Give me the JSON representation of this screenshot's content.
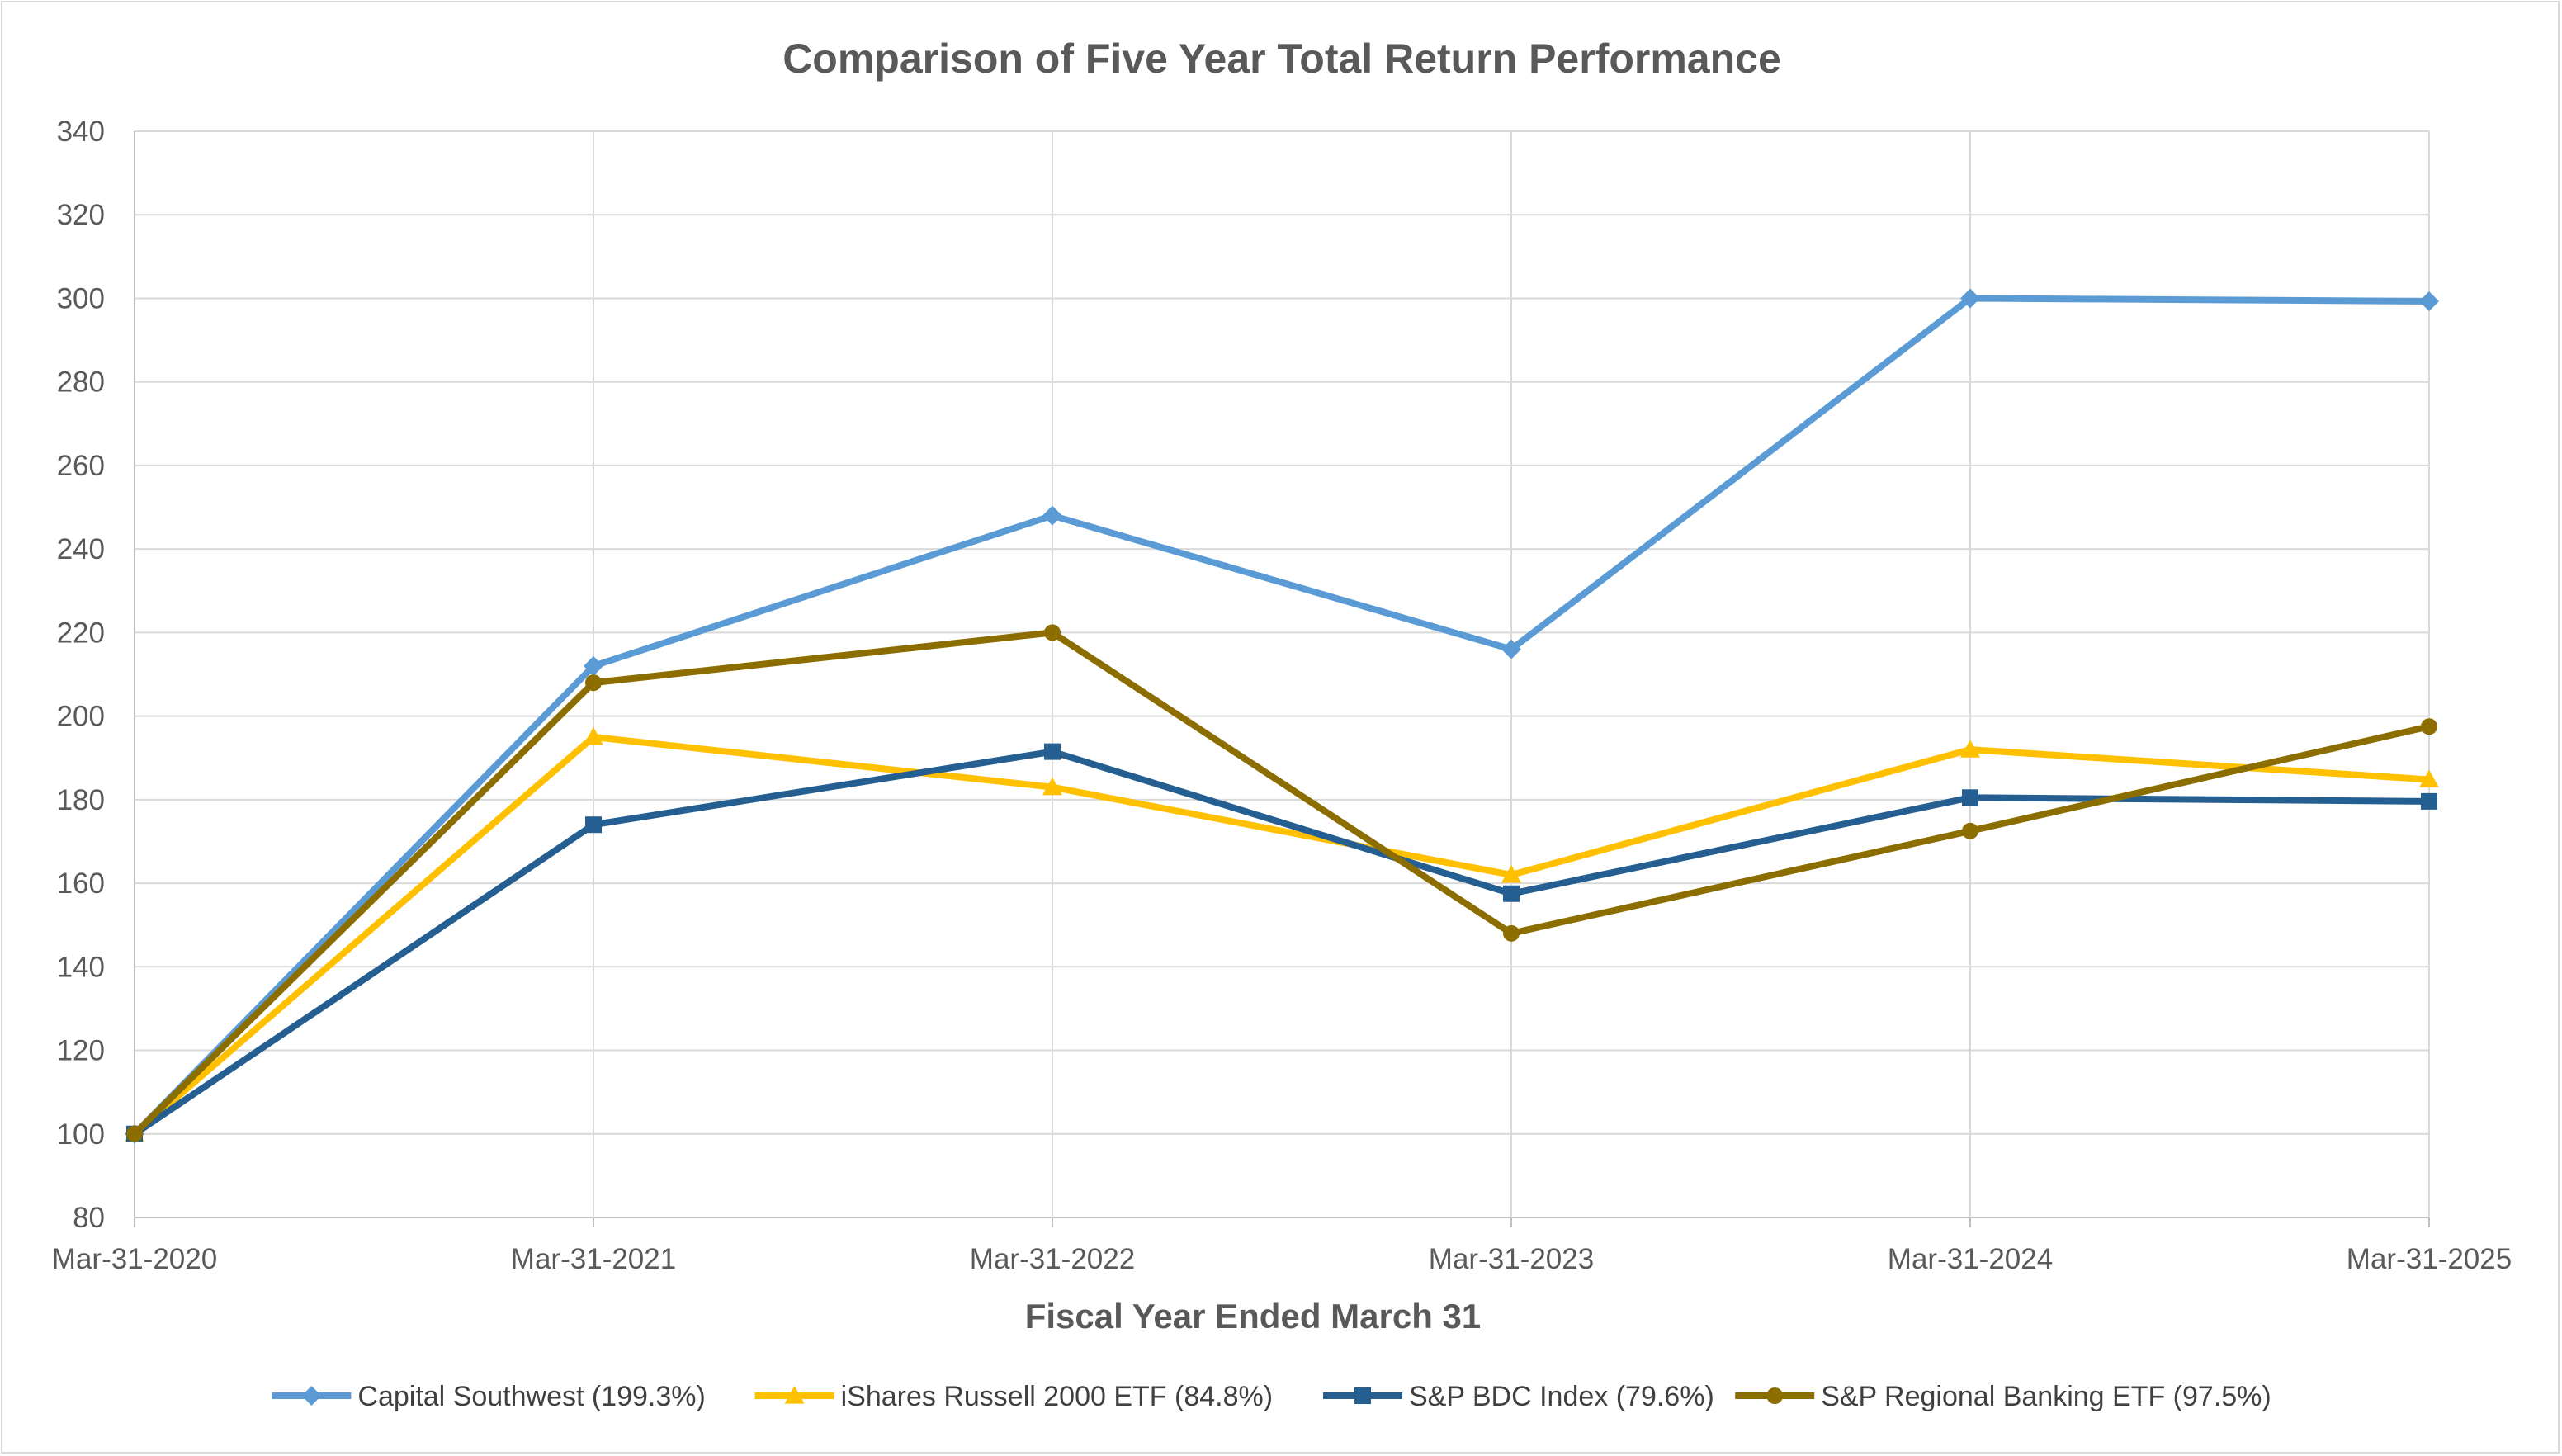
{
  "chart_data": {
    "type": "line",
    "title": "Comparison of Five Year Total Return Performance",
    "xlabel": "Fiscal Year Ended March 31",
    "ylabel": "",
    "categories": [
      "Mar-31-2020",
      "Mar-31-2021",
      "Mar-31-2022",
      "Mar-31-2023",
      "Mar-31-2024",
      "Mar-31-2025"
    ],
    "ylim": [
      80,
      340
    ],
    "yticks": [
      "80",
      "100",
      "120",
      "140",
      "160",
      "180",
      "200",
      "220",
      "240",
      "260",
      "280",
      "300",
      "320",
      "340"
    ],
    "grid": true,
    "legend_position": "bottom",
    "series": [
      {
        "name": "Capital Southwest (199.3%)",
        "color": "#5b9bd5",
        "marker": "diamond",
        "values": [
          100,
          212,
          248,
          216,
          300,
          299.3
        ]
      },
      {
        "name": "iShares Russell 2000 ETF (84.8%)",
        "color": "#ffc000",
        "marker": "triangle",
        "values": [
          100,
          195,
          183,
          162,
          192,
          184.8
        ]
      },
      {
        "name": "S&P BDC Index (79.6%)",
        "color": "#255e91",
        "marker": "square",
        "values": [
          100,
          174,
          191.5,
          157.5,
          180.5,
          179.6
        ]
      },
      {
        "name": "S&P Regional Banking ETF (97.5%)",
        "color": "#8c6d00",
        "marker": "circle",
        "values": [
          100,
          208,
          220,
          148,
          172.5,
          197.5
        ]
      }
    ]
  }
}
